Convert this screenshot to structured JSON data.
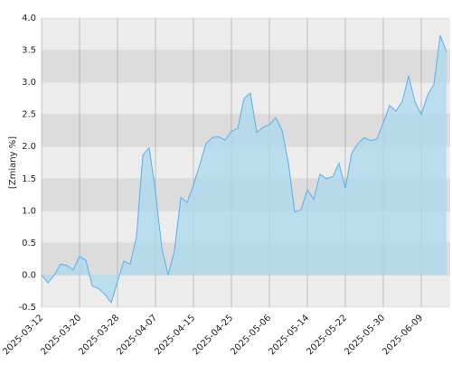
{
  "chart_data": {
    "type": "area",
    "y_label": "[Zmiany %]",
    "categories": [
      "2025-03-12",
      null,
      null,
      null,
      null,
      null,
      "2025-03-20",
      null,
      null,
      null,
      null,
      null,
      "2025-03-28",
      null,
      null,
      null,
      null,
      null,
      "2025-04-07",
      null,
      null,
      null,
      null,
      null,
      "2025-04-15",
      null,
      null,
      null,
      null,
      null,
      "2025-04-25",
      null,
      null,
      null,
      null,
      null,
      "2025-05-06",
      null,
      null,
      null,
      null,
      null,
      "2025-05-14",
      null,
      null,
      null,
      null,
      null,
      "2025-05-22",
      null,
      null,
      null,
      null,
      null,
      "2025-05-30",
      null,
      null,
      null,
      null,
      null,
      "2025-06-09",
      null,
      null,
      null,
      null
    ],
    "values": [
      0.0,
      -0.12,
      0.0,
      0.17,
      0.15,
      0.08,
      0.29,
      0.23,
      -0.17,
      -0.21,
      -0.3,
      -0.43,
      -0.1,
      0.22,
      0.17,
      0.6,
      1.87,
      1.98,
      1.3,
      0.42,
      0.0,
      0.38,
      1.21,
      1.13,
      1.4,
      1.72,
      2.05,
      2.14,
      2.15,
      2.1,
      2.24,
      2.28,
      2.75,
      2.83,
      2.22,
      2.3,
      2.34,
      2.45,
      2.25,
      1.75,
      0.98,
      1.02,
      1.33,
      1.18,
      1.57,
      1.5,
      1.53,
      1.74,
      1.35,
      1.9,
      2.05,
      2.14,
      2.09,
      2.12,
      2.37,
      2.64,
      2.55,
      2.7,
      3.1,
      2.7,
      2.5,
      2.8,
      2.97,
      3.73,
      3.47
    ],
    "color": "#5aaeea",
    "fill": "#a9d9ee",
    "ylim": [
      -0.5,
      4
    ],
    "yticks": [
      {
        "value": 4,
        "label": "4.0"
      },
      3.5,
      {
        "value": 3,
        "label": "3.0"
      },
      2.5,
      {
        "value": 2,
        "label": "2.0"
      },
      1.5,
      {
        "value": 1,
        "label": "1.0"
      },
      0.5,
      {
        "value": 0,
        "label": "0.0"
      },
      -0.5
    ],
    "grid": true
  }
}
